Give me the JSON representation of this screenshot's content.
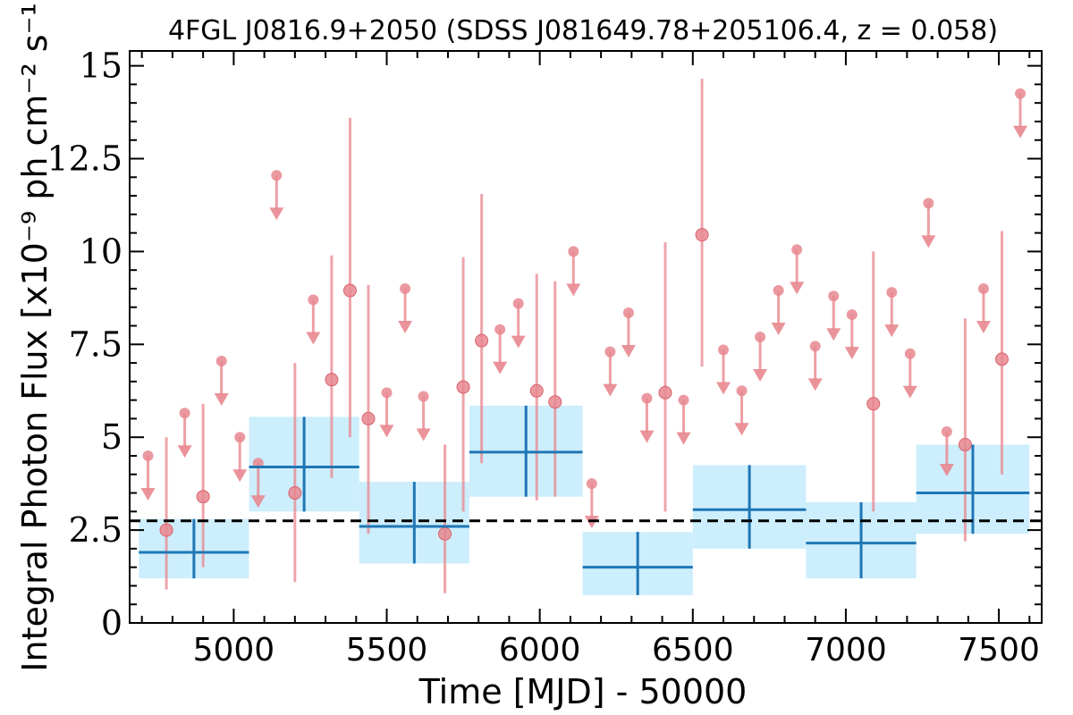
{
  "chart_data": {
    "type": "scatter",
    "title": "4FGL J0816.9+2050 (SDSS J081649.78+205106.4, z = 0.058)",
    "xlabel": "Time [MJD] - 50000",
    "ylabel": "Integral Photon Flux [x10⁻⁹ ph cm⁻² s⁻¹]",
    "xlim": [
      4660,
      7640
    ],
    "ylim": [
      0,
      15.4
    ],
    "xticks": [
      "5000",
      "5500",
      "6000",
      "6500",
      "7000",
      "7500"
    ],
    "yticks": [
      "0",
      "2.5",
      "5",
      "7.5",
      "10",
      "12.5",
      "15"
    ],
    "reference_level": 2.75,
    "colors": {
      "short_bins": "#e8878f",
      "long_bins_line": "#1f77b4",
      "long_bins_fill": "#cdeefc",
      "reference_line": "#000000"
    },
    "long_bins": [
      {
        "x": [
          4690,
          5050
        ],
        "y": 1.9,
        "yerr": [
          1.2,
          2.8
        ]
      },
      {
        "x": [
          5050,
          5410
        ],
        "y": 4.2,
        "yerr": [
          3.0,
          5.55
        ]
      },
      {
        "x": [
          5410,
          5770
        ],
        "y": 2.6,
        "yerr": [
          1.6,
          3.8
        ]
      },
      {
        "x": [
          5770,
          6140
        ],
        "y": 4.6,
        "yerr": [
          3.4,
          5.85
        ]
      },
      {
        "x": [
          6140,
          6500
        ],
        "y": 1.5,
        "yerr": [
          0.75,
          2.45
        ]
      },
      {
        "x": [
          6500,
          6870
        ],
        "y": 3.05,
        "yerr": [
          2.0,
          4.25
        ]
      },
      {
        "x": [
          6870,
          7230
        ],
        "y": 2.15,
        "yerr": [
          1.2,
          3.25
        ]
      },
      {
        "x": [
          7230,
          7600
        ],
        "y": 3.5,
        "yerr": [
          2.4,
          4.8
        ]
      }
    ],
    "short_bin_detections": [
      {
        "x": 4780,
        "y": 2.5,
        "yerr": [
          0.9,
          5.0
        ]
      },
      {
        "x": 4900,
        "y": 3.4,
        "yerr": [
          1.5,
          5.9
        ]
      },
      {
        "x": 5200,
        "y": 3.5,
        "yerr": [
          1.1,
          7.0
        ]
      },
      {
        "x": 5320,
        "y": 6.55,
        "yerr": [
          3.9,
          9.9
        ]
      },
      {
        "x": 5380,
        "y": 8.95,
        "yerr": [
          5.0,
          13.6
        ]
      },
      {
        "x": 5440,
        "y": 5.5,
        "yerr": [
          2.4,
          9.1
        ]
      },
      {
        "x": 5690,
        "y": 2.4,
        "yerr": [
          0.8,
          4.8
        ]
      },
      {
        "x": 5750,
        "y": 6.35,
        "yerr": [
          3.0,
          9.85
        ]
      },
      {
        "x": 5810,
        "y": 7.6,
        "yerr": [
          4.3,
          11.55
        ]
      },
      {
        "x": 5990,
        "y": 6.25,
        "yerr": [
          3.3,
          9.4
        ]
      },
      {
        "x": 6050,
        "y": 5.95,
        "yerr": [
          3.4,
          9.2
        ]
      },
      {
        "x": 6410,
        "y": 6.2,
        "yerr": [
          3.0,
          10.25
        ]
      },
      {
        "x": 6530,
        "y": 10.45,
        "yerr": [
          6.9,
          14.65
        ]
      },
      {
        "x": 7090,
        "y": 5.9,
        "yerr": [
          3.0,
          10.0
        ]
      },
      {
        "x": 7390,
        "y": 4.8,
        "yerr": [
          2.2,
          8.2
        ]
      },
      {
        "x": 7510,
        "y": 7.1,
        "yerr": [
          4.0,
          10.55
        ]
      }
    ],
    "short_bin_upper_limits": [
      {
        "x": 4720,
        "y": 4.5
      },
      {
        "x": 4840,
        "y": 5.65
      },
      {
        "x": 4960,
        "y": 7.05
      },
      {
        "x": 5020,
        "y": 5.0
      },
      {
        "x": 5080,
        "y": 4.3
      },
      {
        "x": 5140,
        "y": 12.05
      },
      {
        "x": 5260,
        "y": 8.7
      },
      {
        "x": 5500,
        "y": 6.2
      },
      {
        "x": 5560,
        "y": 9.0
      },
      {
        "x": 5620,
        "y": 6.1
      },
      {
        "x": 5870,
        "y": 7.9
      },
      {
        "x": 5930,
        "y": 8.6
      },
      {
        "x": 6110,
        "y": 10.0
      },
      {
        "x": 6170,
        "y": 3.75
      },
      {
        "x": 6230,
        "y": 7.3
      },
      {
        "x": 6290,
        "y": 8.35
      },
      {
        "x": 6350,
        "y": 6.05
      },
      {
        "x": 6470,
        "y": 6.0
      },
      {
        "x": 6600,
        "y": 7.35
      },
      {
        "x": 6660,
        "y": 6.25
      },
      {
        "x": 6720,
        "y": 7.7
      },
      {
        "x": 6780,
        "y": 8.95
      },
      {
        "x": 6840,
        "y": 10.05
      },
      {
        "x": 6900,
        "y": 7.45
      },
      {
        "x": 6960,
        "y": 8.8
      },
      {
        "x": 7020,
        "y": 8.3
      },
      {
        "x": 7150,
        "y": 8.9
      },
      {
        "x": 7210,
        "y": 7.25
      },
      {
        "x": 7270,
        "y": 11.3
      },
      {
        "x": 7330,
        "y": 5.15
      },
      {
        "x": 7450,
        "y": 9.0
      },
      {
        "x": 7570,
        "y": 14.25
      }
    ]
  }
}
